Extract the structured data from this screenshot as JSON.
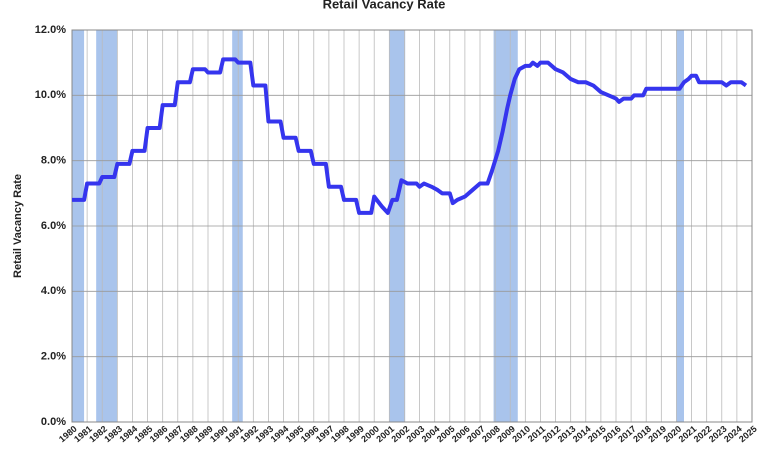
{
  "chart_data": {
    "type": "line",
    "title": "Retail Vacancy Rate",
    "y_label": "Retail Vacancy Rate",
    "color": "#3535ee",
    "shade_color": "#a9c4ec",
    "grid": true,
    "x": [
      1980,
      1980.8,
      1981,
      1981.8,
      1982,
      1982.8,
      1983,
      1983.8,
      1984,
      1984.8,
      1985,
      1985.8,
      1986,
      1986.8,
      1987,
      1987.8,
      1988,
      1988.8,
      1989,
      1989.8,
      1990,
      1990.8,
      1991,
      1991.8,
      1992,
      1992.8,
      1993,
      1993.8,
      1994,
      1994.8,
      1995,
      1995.8,
      1996,
      1996.8,
      1997,
      1997.8,
      1998,
      1998.8,
      1999,
      1999.8,
      2000,
      2000.5,
      2000.9,
      2001.2,
      2001.5,
      2001.8,
      2002.2,
      2002.8,
      2003,
      2003.3,
      2003.8,
      2004.2,
      2004.5,
      2005,
      2005.2,
      2005.5,
      2006,
      2006.5,
      2007,
      2007.5,
      2007.8,
      2008.2,
      2008.5,
      2008.8,
      2009,
      2009.3,
      2009.6,
      2010,
      2010.3,
      2010.5,
      2010.8,
      2011,
      2011.5,
      2012,
      2012.5,
      2013,
      2013.5,
      2014,
      2014.5,
      2015,
      2015.5,
      2016,
      2016.2,
      2016.5,
      2017,
      2017.2,
      2017.8,
      2018,
      2019,
      2020,
      2020.2,
      2020.5,
      2020.8,
      2021,
      2021.3,
      2021.5,
      2022,
      2023,
      2023.3,
      2023.6,
      2024,
      2024.3,
      2024.6
    ],
    "values": [
      6.8,
      6.8,
      7.3,
      7.3,
      7.5,
      7.5,
      7.9,
      7.9,
      8.3,
      8.3,
      9.0,
      9.0,
      9.7,
      9.7,
      10.4,
      10.4,
      10.8,
      10.8,
      10.7,
      10.7,
      11.1,
      11.1,
      11.0,
      11.0,
      10.3,
      10.3,
      9.2,
      9.2,
      8.7,
      8.7,
      8.3,
      8.3,
      7.9,
      7.9,
      7.2,
      7.2,
      6.8,
      6.8,
      6.4,
      6.4,
      6.9,
      6.6,
      6.4,
      6.8,
      6.8,
      7.4,
      7.3,
      7.3,
      7.2,
      7.3,
      7.2,
      7.1,
      7.0,
      7.0,
      6.7,
      6.8,
      6.9,
      7.1,
      7.3,
      7.3,
      7.7,
      8.3,
      8.9,
      9.6,
      10.0,
      10.5,
      10.8,
      10.9,
      10.9,
      11.0,
      10.9,
      11.0,
      11.0,
      10.8,
      10.7,
      10.5,
      10.4,
      10.4,
      10.3,
      10.1,
      10.0,
      9.9,
      9.8,
      9.9,
      9.9,
      10.0,
      10.0,
      10.2,
      10.2,
      10.2,
      10.2,
      10.4,
      10.5,
      10.6,
      10.6,
      10.4,
      10.4,
      10.4,
      10.3,
      10.4,
      10.4,
      10.4,
      10.3
    ],
    "shaded_ranges": [
      [
        1980,
        1980.8
      ],
      [
        1981.6,
        1983
      ],
      [
        1990.6,
        1991.3
      ],
      [
        2001,
        2002.05
      ],
      [
        2007.9,
        2009.5
      ],
      [
        2020,
        2020.5
      ]
    ],
    "xlim": [
      1980,
      2025
    ],
    "xticks": [
      1980,
      1981,
      1982,
      1983,
      1984,
      1985,
      1986,
      1987,
      1988,
      1989,
      1990,
      1991,
      1992,
      1993,
      1994,
      1995,
      1996,
      1997,
      1998,
      1999,
      2000,
      2001,
      2002,
      2003,
      2004,
      2005,
      2006,
      2007,
      2008,
      2009,
      2010,
      2011,
      2012,
      2013,
      2014,
      2015,
      2016,
      2017,
      2018,
      2019,
      2020,
      2021,
      2022,
      2023,
      2024,
      2025
    ],
    "ylim": [
      0,
      12
    ],
    "yticks": [
      {
        "value": 0,
        "label": "0.0%"
      },
      {
        "value": 2,
        "label": "2.0%"
      },
      {
        "value": 4,
        "label": "4.0%"
      },
      {
        "value": 6,
        "label": "6.0%"
      },
      {
        "value": 8,
        "label": "8.0%"
      },
      {
        "value": 10,
        "label": "10.0%"
      },
      {
        "value": 12,
        "label": "12.0%"
      }
    ]
  }
}
